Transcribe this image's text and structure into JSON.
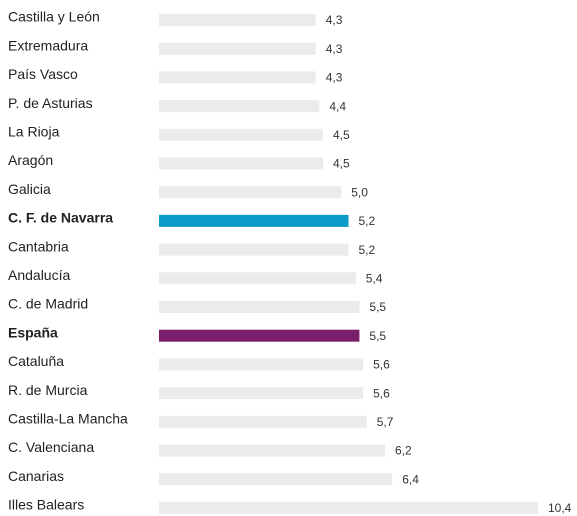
{
  "chart_data": {
    "type": "bar",
    "orientation": "horizontal",
    "categories": [
      "Castilla y León",
      "Extremadura",
      "País Vasco",
      "P. de Asturias",
      "La Rioja",
      "Aragón",
      "Galicia",
      "C. F. de Navarra",
      "Cantabria",
      "Andalucía",
      "C. de Madrid",
      "España",
      "Cataluña",
      "R. de Murcia",
      "Castilla-La Mancha",
      "C. Valenciana",
      "Canarias",
      "Illes Balears"
    ],
    "values": [
      4.3,
      4.3,
      4.3,
      4.4,
      4.5,
      4.5,
      5.0,
      5.2,
      5.2,
      5.4,
      5.5,
      5.5,
      5.6,
      5.6,
      5.7,
      6.2,
      6.4,
      10.4
    ],
    "value_labels": [
      "4,3",
      "4,3",
      "4,3",
      "4,4",
      "4,5",
      "4,5",
      "5,0",
      "5,2",
      "5,2",
      "5,4",
      "5,5",
      "5,5",
      "5,6",
      "5,6",
      "5,7",
      "6,2",
      "6,4",
      "10,4"
    ],
    "color": "#ebebeb",
    "colors": [
      "#ebebeb",
      "#ebebeb",
      "#ebebeb",
      "#ebebeb",
      "#ebebeb",
      "#ebebeb",
      "#ebebeb",
      "#0a9ac7",
      "#ebebeb",
      "#ebebeb",
      "#ebebeb",
      "#7b1f6c",
      "#ebebeb",
      "#ebebeb",
      "#ebebeb",
      "#ebebeb",
      "#ebebeb",
      "#ebebeb"
    ]
  }
}
